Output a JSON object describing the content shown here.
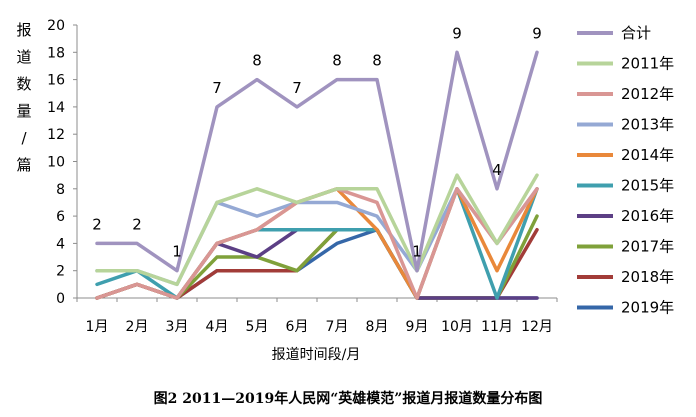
{
  "chart_data": {
    "type": "line",
    "caption": "图2  2011—2019年人民网“英雄模范”报道月报道数量分布图",
    "ylabel": "报道数量/篇",
    "xlabel": "报道时间段/月",
    "categories": [
      "1月",
      "2月",
      "3月",
      "4月",
      "5月",
      "6月",
      "7月",
      "8月",
      "9月",
      "10月",
      "11月",
      "12月"
    ],
    "ylim": [
      0,
      20
    ],
    "yticks": [
      0,
      2,
      4,
      6,
      8,
      10,
      12,
      14,
      16,
      18,
      20
    ],
    "grid": false,
    "legend_position": "right",
    "series": [
      {
        "name": "合计",
        "color": "#a093bf",
        "values": [
          4,
          4,
          2,
          14,
          16,
          14,
          16,
          16,
          2,
          18,
          8,
          18
        ]
      },
      {
        "name": "2011年",
        "color": "#b7d49a",
        "values": [
          2,
          2,
          1,
          7,
          8,
          7,
          8,
          8,
          2,
          9,
          4,
          9
        ]
      },
      {
        "name": "2012年",
        "color": "#d99694",
        "values": [
          0,
          1,
          0,
          4,
          5,
          7,
          8,
          7,
          0,
          8,
          4,
          8
        ]
      },
      {
        "name": "2013年",
        "color": "#95a9d4",
        "values": [
          2,
          2,
          1,
          7,
          6,
          7,
          7,
          6,
          2,
          8,
          4,
          8
        ]
      },
      {
        "name": "2014年",
        "color": "#e9883a",
        "values": [
          0,
          1,
          0,
          4,
          5,
          7,
          8,
          5,
          0,
          8,
          2,
          8
        ]
      },
      {
        "name": "2015年",
        "color": "#3f9fae",
        "values": [
          1,
          2,
          0,
          4,
          5,
          5,
          5,
          5,
          0,
          8,
          0,
          8
        ]
      },
      {
        "name": "2016年",
        "color": "#5c3f85",
        "values": [
          0,
          1,
          0,
          4,
          3,
          5,
          5,
          5,
          0,
          0,
          0,
          0
        ]
      },
      {
        "name": "2017年",
        "color": "#7fa13a",
        "values": [
          0,
          1,
          0,
          3,
          3,
          2,
          5,
          5,
          0,
          0,
          0,
          6
        ]
      },
      {
        "name": "2018年",
        "color": "#a23c38",
        "values": [
          0,
          1,
          0,
          2,
          2,
          2,
          5,
          5,
          0,
          0,
          0,
          5
        ]
      },
      {
        "name": "2019年",
        "color": "#3567a8",
        "values": [
          0,
          1,
          0,
          2,
          2,
          2,
          4,
          5,
          0,
          0,
          0,
          0
        ]
      }
    ],
    "annotations": [
      {
        "category": "1月",
        "value": 4,
        "label": "2"
      },
      {
        "category": "2月",
        "value": 4,
        "label": "2"
      },
      {
        "category": "3月",
        "value": 2,
        "label": "1"
      },
      {
        "category": "4月",
        "value": 14,
        "label": "7"
      },
      {
        "category": "5月",
        "value": 16,
        "label": "8"
      },
      {
        "category": "6月",
        "value": 14,
        "label": "7"
      },
      {
        "category": "7月",
        "value": 16,
        "label": "8"
      },
      {
        "category": "8月",
        "value": 16,
        "label": "8"
      },
      {
        "category": "9月",
        "value": 2,
        "label": "1"
      },
      {
        "category": "10月",
        "value": 18,
        "label": "9"
      },
      {
        "category": "11月",
        "value": 8,
        "label": "4"
      },
      {
        "category": "12月",
        "value": 18,
        "label": "9"
      }
    ]
  }
}
